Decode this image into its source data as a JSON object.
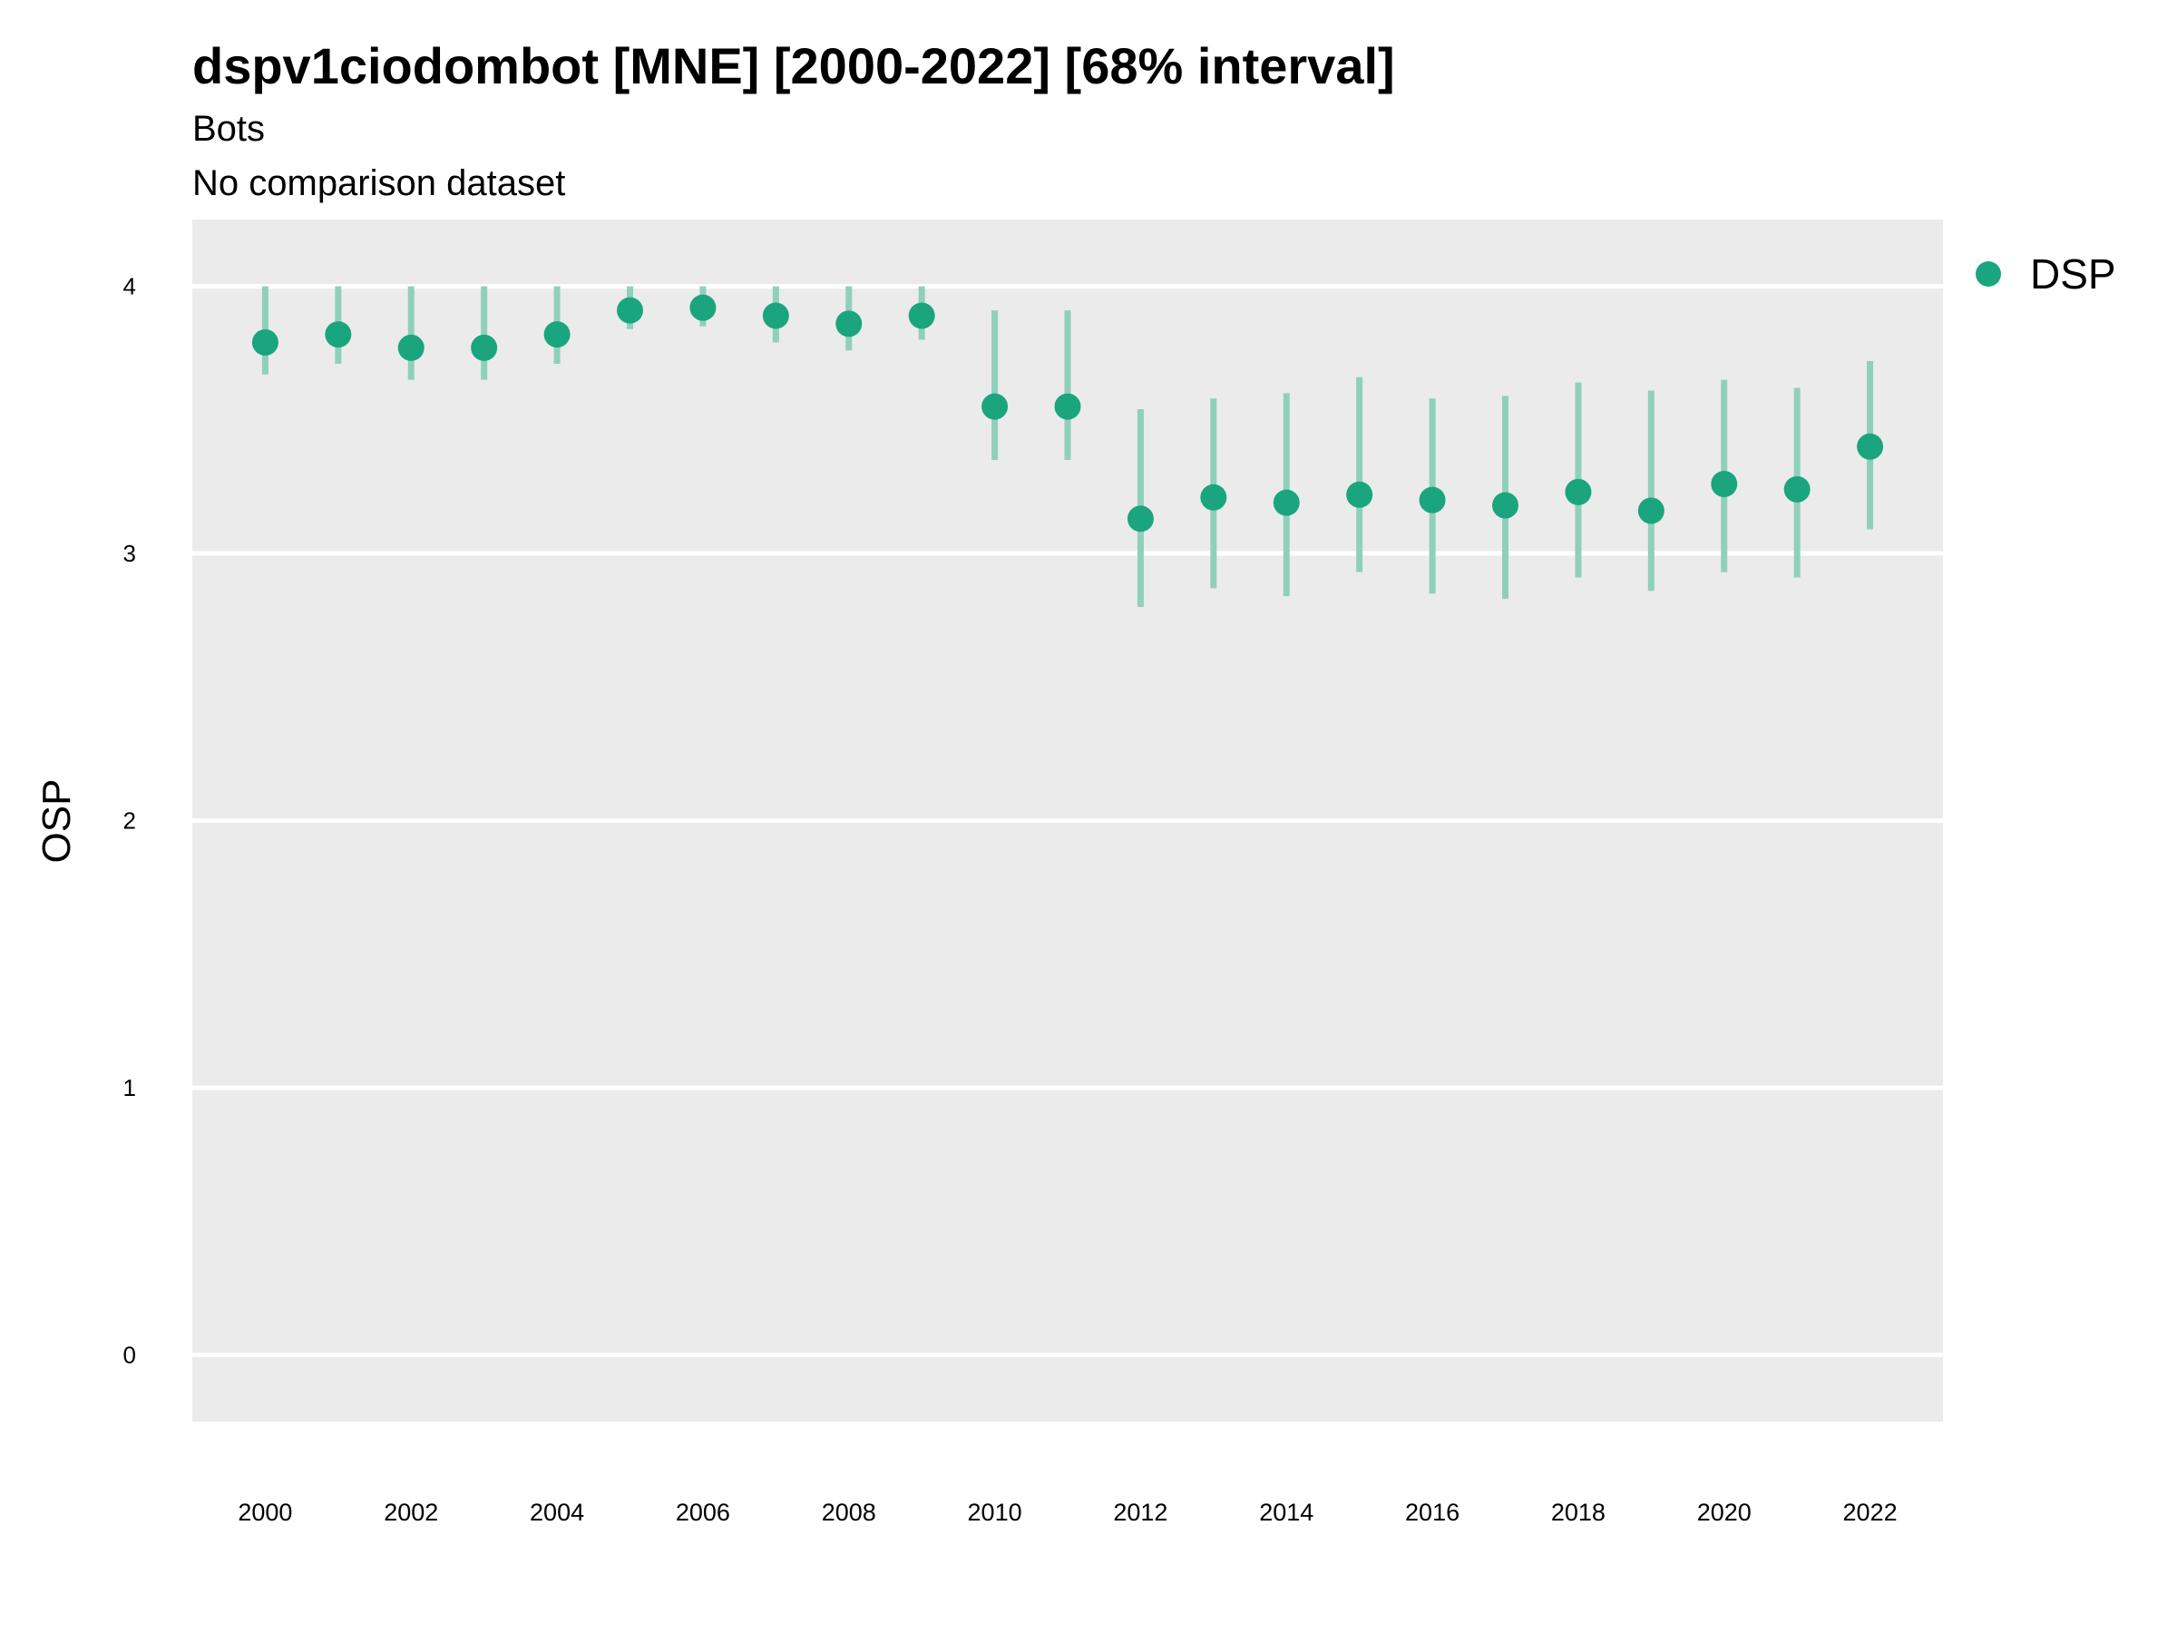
{
  "chart_data": {
    "type": "scatter",
    "title": "dspv1ciodombot [MNE] [2000-2022] [68% interval]",
    "subtitle": "Bots",
    "subtitle2": "No comparison dataset",
    "ylabel": "OSP",
    "xlabel": "",
    "ylim": [
      -0.25,
      4.25
    ],
    "xlim": [
      1999,
      2023
    ],
    "yticks": [
      0,
      1,
      2,
      3,
      4
    ],
    "xticks": [
      2000,
      2002,
      2004,
      2006,
      2008,
      2010,
      2012,
      2014,
      2016,
      2018,
      2020,
      2022
    ],
    "grid": true,
    "legend_position": "top-right",
    "colors": {
      "panel_background": "#ebebeb",
      "gridline": "#ffffff",
      "point": "#1aa57e",
      "interval": "#8fd0bb"
    },
    "series": [
      {
        "name": "DSP",
        "x": [
          2000,
          2001,
          2002,
          2003,
          2004,
          2005,
          2006,
          2007,
          2008,
          2009,
          2010,
          2011,
          2012,
          2013,
          2014,
          2015,
          2016,
          2017,
          2018,
          2019,
          2020,
          2021,
          2022
        ],
        "y": [
          3.79,
          3.82,
          3.77,
          3.77,
          3.82,
          3.91,
          3.92,
          3.89,
          3.86,
          3.89,
          3.55,
          3.55,
          3.13,
          3.21,
          3.19,
          3.22,
          3.2,
          3.18,
          3.23,
          3.16,
          3.26,
          3.24,
          3.4
        ],
        "lower": [
          3.67,
          3.71,
          3.65,
          3.65,
          3.71,
          3.84,
          3.85,
          3.79,
          3.76,
          3.8,
          3.35,
          3.35,
          2.8,
          2.87,
          2.84,
          2.93,
          2.85,
          2.83,
          2.91,
          2.86,
          2.93,
          2.91,
          3.09
        ],
        "upper": [
          4.0,
          4.0,
          4.0,
          4.0,
          4.0,
          4.0,
          4.0,
          4.0,
          4.0,
          4.0,
          3.91,
          3.91,
          3.54,
          3.58,
          3.6,
          3.66,
          3.58,
          3.59,
          3.64,
          3.61,
          3.65,
          3.62,
          3.72
        ]
      }
    ]
  }
}
